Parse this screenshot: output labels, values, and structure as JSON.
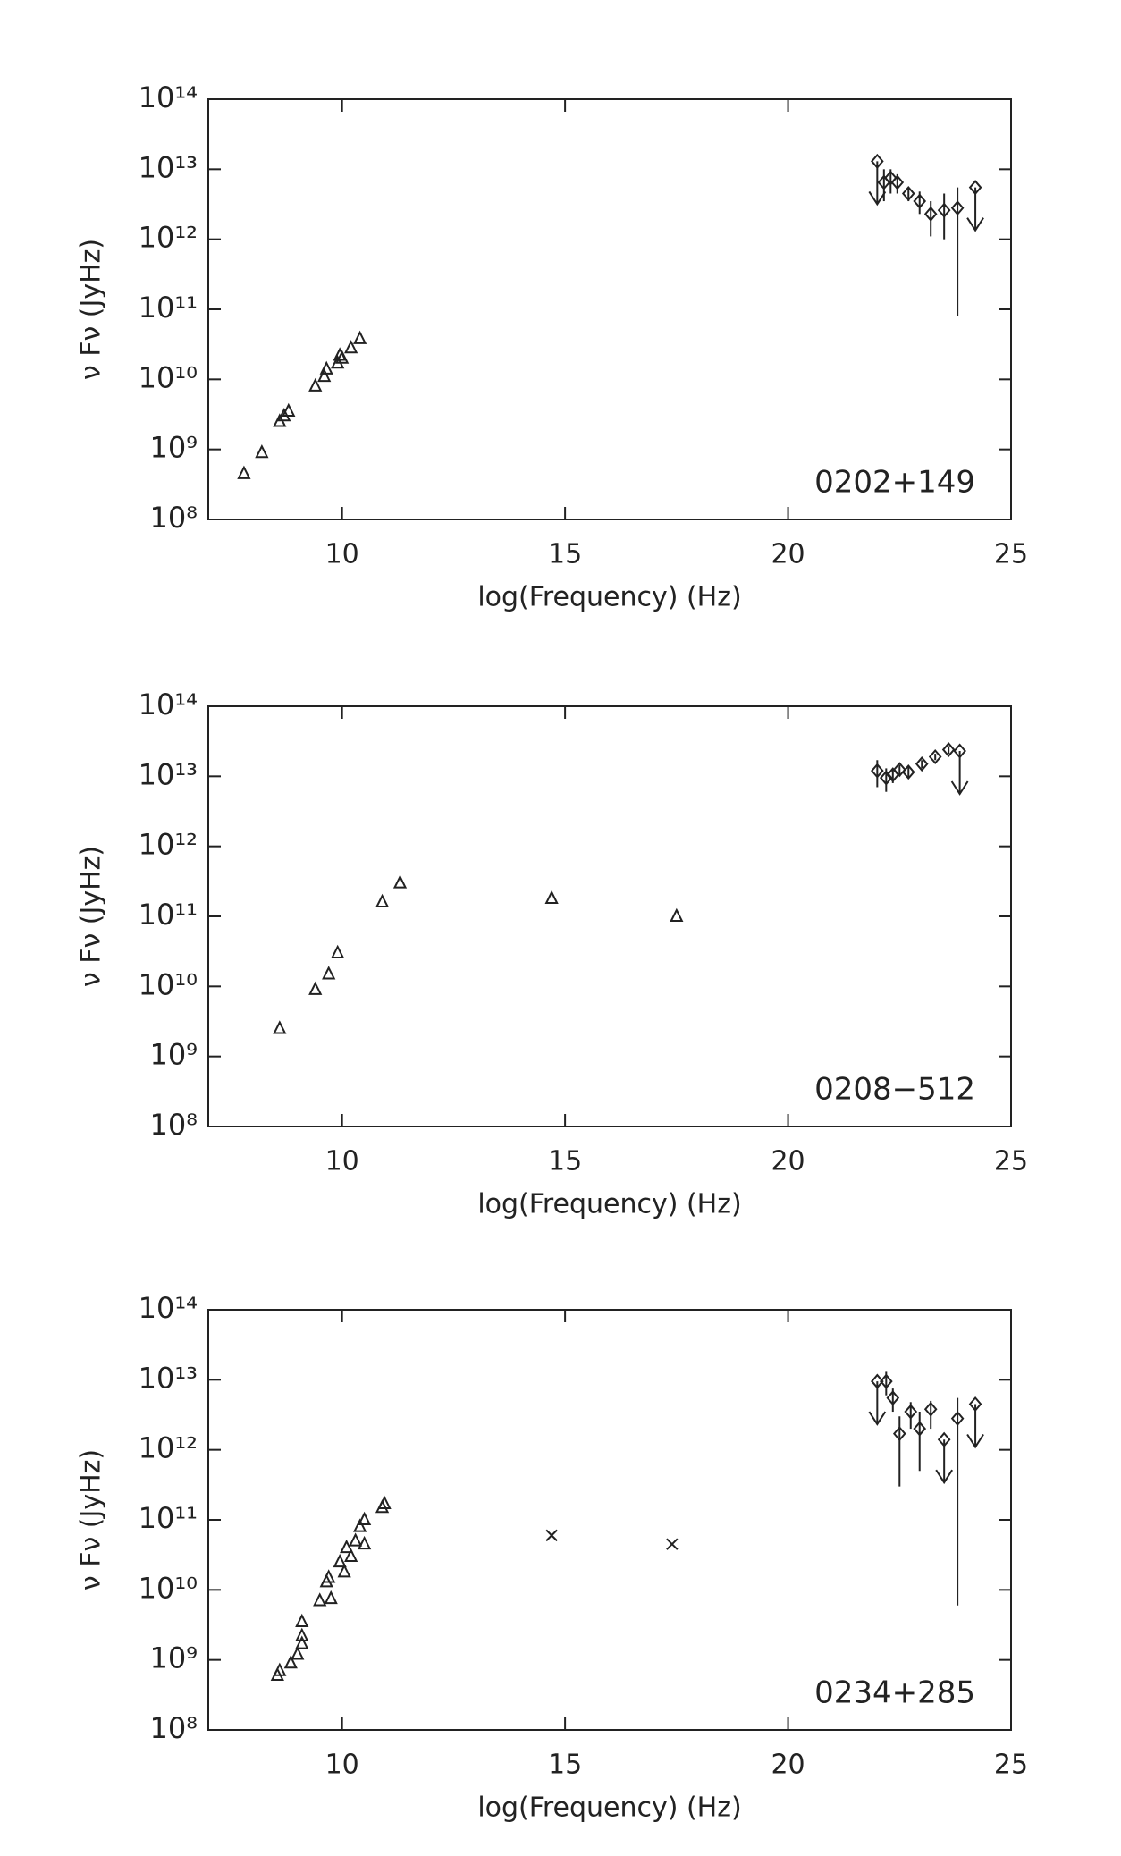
{
  "chart_data": [
    {
      "type": "scatter",
      "annotation": "0202+149",
      "xlabel": "log(Frequency) (Hz)",
      "ylabel": "ν Fν  (JyHz)",
      "xlim": [
        7,
        25
      ],
      "xticks": [
        10,
        15,
        20,
        25
      ],
      "log_y": true,
      "ylim": [
        100000000.0,
        100000000000000.0
      ],
      "yticks": [
        {
          "value": 100000000.0,
          "label": "10⁸"
        },
        {
          "value": 1000000000.0,
          "label": "10⁹"
        },
        {
          "value": 10000000000.0,
          "label": "10¹⁰"
        },
        {
          "value": 100000000000.0,
          "label": "10¹¹"
        },
        {
          "value": 1000000000000.0,
          "label": "10¹²"
        },
        {
          "value": 10000000000000.0,
          "label": "10¹³"
        },
        {
          "value": 100000000000000.0,
          "label": "10¹⁴"
        }
      ],
      "series": [
        {
          "marker": "triangle",
          "color": "#222222",
          "x": [
            7.8,
            8.2,
            8.6,
            8.7,
            8.8,
            9.4,
            9.6,
            9.65,
            9.9,
            9.95,
            10.0,
            10.2,
            10.4
          ],
          "values": [
            450000000.0,
            900000000.0,
            2500000000.0,
            3000000000.0,
            3500000000.0,
            8000000000.0,
            11000000000.0,
            14000000000.0,
            17000000000.0,
            22000000000.0,
            20000000000.0,
            28000000000.0,
            38000000000.0
          ]
        },
        {
          "marker": "diamond",
          "color": "#222222",
          "x": [
            22.0,
            22.15,
            22.3,
            22.45,
            22.7,
            22.95,
            23.2,
            23.5,
            23.8,
            24.2
          ],
          "values": [
            13000000000000.0,
            6500000000000.0,
            7500000000000.0,
            6500000000000.0,
            4500000000000.0,
            3500000000000.0,
            2300000000000.0,
            2600000000000.0,
            2800000000000.0,
            5500000000000.0
          ],
          "ylow": [
            null,
            3500000000000.0,
            4500000000000.0,
            4500000000000.0,
            3500000000000.0,
            2300000000000.0,
            1100000000000.0,
            1000000000000.0,
            80000000000.0,
            null
          ],
          "yhigh": [
            null,
            10000000000000.0,
            10000000000000.0,
            8500000000000.0,
            5500000000000.0,
            4800000000000.0,
            3500000000000.0,
            4500000000000.0,
            5500000000000.0,
            null
          ],
          "upper_limit": [
            true,
            false,
            false,
            false,
            false,
            false,
            false,
            false,
            false,
            true
          ]
        }
      ]
    },
    {
      "type": "scatter",
      "annotation": "0208−512",
      "xlabel": "log(Frequency) (Hz)",
      "ylabel": "ν Fν  (JyHz)",
      "xlim": [
        7,
        25
      ],
      "xticks": [
        10,
        15,
        20,
        25
      ],
      "log_y": true,
      "ylim": [
        100000000.0,
        100000000000000.0
      ],
      "yticks": [
        {
          "value": 100000000.0,
          "label": "10⁸"
        },
        {
          "value": 1000000000.0,
          "label": "10⁹"
        },
        {
          "value": 10000000000.0,
          "label": "10¹⁰"
        },
        {
          "value": 100000000000.0,
          "label": "10¹¹"
        },
        {
          "value": 1000000000000.0,
          "label": "10¹²"
        },
        {
          "value": 10000000000000.0,
          "label": "10¹³"
        },
        {
          "value": 100000000000000.0,
          "label": "10¹⁴"
        }
      ],
      "series": [
        {
          "marker": "triangle",
          "color": "#222222",
          "x": [
            8.6,
            9.4,
            9.7,
            9.9,
            10.9,
            11.3,
            14.7,
            17.5
          ],
          "values": [
            2500000000.0,
            9000000000.0,
            15000000000.0,
            30000000000.0,
            160000000000.0,
            300000000000.0,
            180000000000.0,
            100000000000.0
          ]
        },
        {
          "marker": "diamond",
          "color": "#222222",
          "x": [
            22.0,
            22.2,
            22.35,
            22.5,
            22.7,
            23.0,
            23.3,
            23.6,
            23.85
          ],
          "values": [
            12000000000000.0,
            9500000000000.0,
            10500000000000.0,
            12500000000000.0,
            11500000000000.0,
            15000000000000.0,
            19000000000000.0,
            24000000000000.0,
            23000000000000.0
          ],
          "ylow": [
            7000000000000.0,
            6000000000000.0,
            8000000000000.0,
            10000000000000.0,
            9500000000000.0,
            13000000000000.0,
            17000000000000.0,
            21000000000000.0,
            null
          ],
          "yhigh": [
            17000000000000.0,
            13000000000000.0,
            13000000000000.0,
            14500000000000.0,
            13500000000000.0,
            17000000000000.0,
            21000000000000.0,
            27000000000000.0,
            null
          ],
          "upper_limit": [
            false,
            false,
            false,
            false,
            false,
            false,
            false,
            false,
            true
          ]
        }
      ]
    },
    {
      "type": "scatter",
      "annotation": "0234+285",
      "xlabel": "log(Frequency) (Hz)",
      "ylabel": "ν Fν  (JyHz)",
      "xlim": [
        7,
        25
      ],
      "xticks": [
        10,
        15,
        20,
        25
      ],
      "log_y": true,
      "ylim": [
        100000000.0,
        100000000000000.0
      ],
      "yticks": [
        {
          "value": 100000000.0,
          "label": "10⁸"
        },
        {
          "value": 1000000000.0,
          "label": "10⁹"
        },
        {
          "value": 10000000000.0,
          "label": "10¹⁰"
        },
        {
          "value": 100000000000.0,
          "label": "10¹¹"
        },
        {
          "value": 1000000000000.0,
          "label": "10¹²"
        },
        {
          "value": 10000000000000.0,
          "label": "10¹³"
        },
        {
          "value": 100000000000000.0,
          "label": "10¹⁴"
        }
      ],
      "series": [
        {
          "marker": "triangle",
          "color": "#222222",
          "x": [
            8.55,
            8.6,
            8.85,
            9.0,
            9.1,
            9.1,
            9.1,
            9.5,
            9.65,
            9.7,
            9.75,
            9.95,
            10.05,
            10.1,
            10.2,
            10.3,
            10.4,
            10.5,
            10.5,
            10.9,
            10.95
          ],
          "values": [
            600000000.0,
            700000000.0,
            900000000.0,
            1200000000.0,
            1700000000.0,
            2200000000.0,
            3500000000.0,
            7000000000.0,
            13000000000.0,
            15000000000.0,
            7500000000.0,
            25000000000.0,
            18000000000.0,
            40000000000.0,
            30000000000.0,
            50000000000.0,
            80000000000.0,
            100000000000.0,
            45000000000.0,
            150000000000.0,
            170000000000.0
          ]
        },
        {
          "marker": "cross",
          "color": "#222222",
          "x": [
            14.7,
            17.4
          ],
          "values": [
            60000000000.0,
            45000000000.0
          ]
        },
        {
          "marker": "diamond",
          "color": "#222222",
          "x": [
            22.0,
            22.2,
            22.35,
            22.5,
            22.75,
            22.95,
            23.2,
            23.5,
            23.8,
            24.2
          ],
          "values": [
            9500000000000.0,
            9500000000000.0,
            5500000000000.0,
            1700000000000.0,
            3500000000000.0,
            2000000000000.0,
            3800000000000.0,
            1400000000000.0,
            2800000000000.0,
            4500000000000.0
          ],
          "ylow": [
            null,
            6000000000000.0,
            3500000000000.0,
            300000000000.0,
            2000000000000.0,
            500000000000.0,
            2000000000000.0,
            null,
            6000000000.0,
            null
          ],
          "yhigh": [
            null,
            13000000000000.0,
            7500000000000.0,
            3000000000000.0,
            4800000000000.0,
            3500000000000.0,
            5000000000000.0,
            null,
            5500000000000.0,
            null
          ],
          "upper_limit": [
            true,
            false,
            false,
            false,
            false,
            false,
            false,
            true,
            false,
            true
          ]
        }
      ]
    }
  ]
}
